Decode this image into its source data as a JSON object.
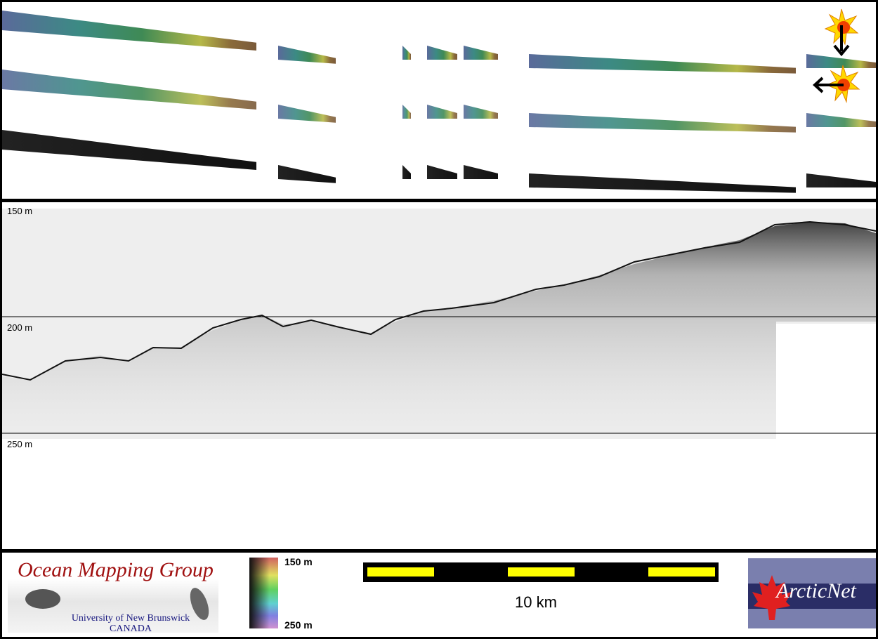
{
  "swath_panel": {
    "rows": [
      "sun-illuminated-north",
      "sun-illuminated-west",
      "backscatter"
    ],
    "icons": [
      "sun-illumination-north-icon",
      "sun-illumination-west-icon"
    ]
  },
  "echogram": {
    "depth_labels": [
      "150 m",
      "200 m",
      "250 m"
    ]
  },
  "legend": {
    "omg_title": "Ocean Mapping Group",
    "omg_university": "University of New Brunswick",
    "omg_country": "CANADA",
    "colorbar_top": "150 m",
    "colorbar_bottom": "250 m",
    "scale_bar_label": "10 km",
    "arcticnet_logo": "ArcticNet",
    "colors": {
      "scale_yellow": "#ffff00",
      "omg_red": "#a01010",
      "arcticnet_navy": "#2a2d66"
    }
  }
}
